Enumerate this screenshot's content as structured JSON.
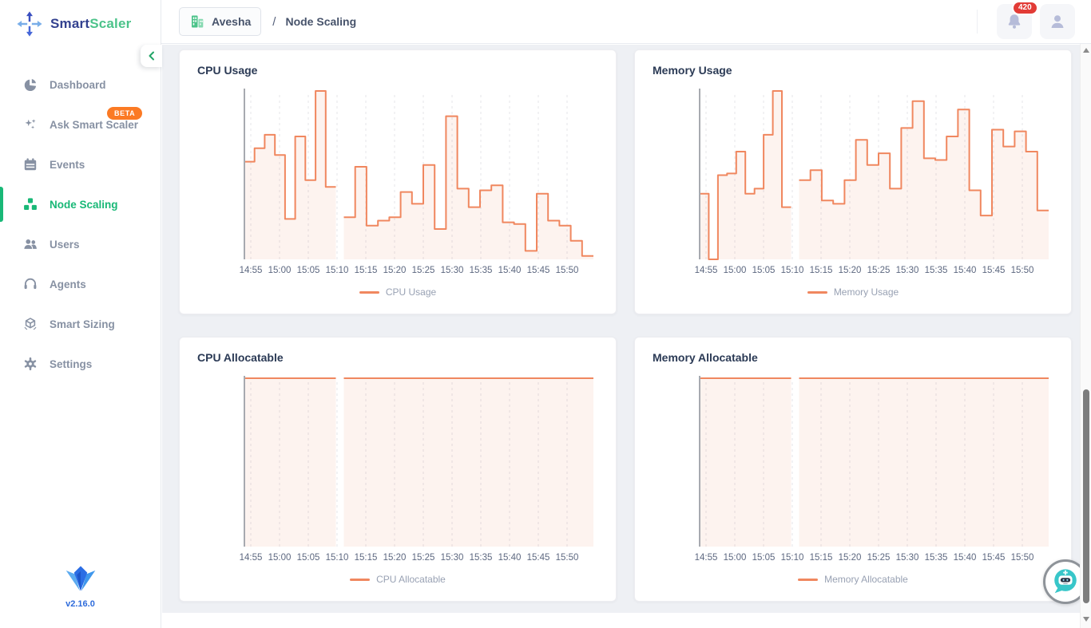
{
  "brand": {
    "name_part1": "Smart",
    "name_part2": "Scaler",
    "version": "v2.16.0",
    "accent_green": "#19b877",
    "accent_blue": "#33418f"
  },
  "header": {
    "org_button": {
      "label": "Avesha",
      "icon": "buildings-icon"
    },
    "separator": "/",
    "page_title": "Node Scaling",
    "notifications": {
      "count": "420",
      "badge_color": "#e23b36"
    }
  },
  "sidebar": {
    "items": [
      {
        "label": "Dashboard",
        "icon": "pie-chart-icon",
        "active": false
      },
      {
        "label": "Ask Smart Scaler",
        "icon": "sparkles-icon",
        "active": false,
        "badge": "BETA",
        "badge_color": "#fb7a24"
      },
      {
        "label": "Events",
        "icon": "calendar-icon",
        "active": false
      },
      {
        "label": "Node Scaling",
        "icon": "nodes-icon",
        "active": true
      },
      {
        "label": "Users",
        "icon": "users-icon",
        "active": false
      },
      {
        "label": "Agents",
        "icon": "headset-icon",
        "active": false
      },
      {
        "label": "Smart Sizing",
        "icon": "cube-icon",
        "active": false
      },
      {
        "label": "Settings",
        "icon": "gear-icon",
        "active": false
      }
    ]
  },
  "icons": {
    "logo": "arrows-expand-icon",
    "collapse": "chevron-left-icon",
    "notification": "bell-icon",
    "profile": "user-icon",
    "chat": "chatbot-icon",
    "footer_logo": "crown-logo-icon"
  },
  "chart_data": [
    {
      "type": "line",
      "step": true,
      "title": "CPU Usage",
      "legend": "CPU Usage",
      "line_color": "#f0875f",
      "fill_color": "rgba(240,135,95,0.10)",
      "grid": "vertical-dashed",
      "legend_position": "bottom",
      "ylim": [
        0,
        100
      ],
      "x_ticks": [
        "14:55",
        "15:00",
        "15:05",
        "15:10",
        "15:15",
        "15:20",
        "15:25",
        "15:30",
        "15:35",
        "15:40",
        "15:45",
        "15:50"
      ],
      "segments": [
        {
          "start": 0,
          "end": 0.262,
          "values": [
            58,
            66,
            74,
            62,
            24,
            73,
            47,
            100,
            43
          ]
        },
        {
          "start": 0.285,
          "end": 1,
          "values": [
            25,
            55,
            20,
            23,
            25,
            40,
            33,
            56,
            18,
            85,
            42,
            31,
            41,
            44,
            22,
            21,
            5,
            39,
            23,
            20,
            11,
            2
          ]
        }
      ]
    },
    {
      "type": "line",
      "step": true,
      "title": "Memory Usage",
      "legend": "Memory Usage",
      "line_color": "#f0875f",
      "fill_color": "rgba(240,135,95,0.10)",
      "grid": "vertical-dashed",
      "legend_position": "bottom",
      "ylim": [
        0,
        100
      ],
      "x_ticks": [
        "14:55",
        "15:00",
        "15:05",
        "15:10",
        "15:15",
        "15:20",
        "15:25",
        "15:30",
        "15:35",
        "15:40",
        "15:45",
        "15:50"
      ],
      "segments": [
        {
          "start": 0,
          "end": 0.262,
          "values": [
            39,
            0,
            50,
            51,
            64,
            39,
            42,
            74,
            100,
            31
          ]
        },
        {
          "start": 0.285,
          "end": 1,
          "values": [
            47,
            53,
            35,
            33,
            47,
            71,
            56,
            63,
            42,
            78,
            94,
            60,
            59,
            73,
            89,
            41,
            26,
            77,
            67,
            76,
            64,
            29
          ]
        }
      ]
    },
    {
      "type": "line",
      "step": true,
      "title": "CPU Allocatable",
      "legend": "CPU Allocatable",
      "line_color": "#f0875f",
      "fill_color": "rgba(240,135,95,0.10)",
      "grid": "vertical-dashed",
      "legend_position": "bottom",
      "ylim": [
        0,
        100
      ],
      "x_ticks": [
        "14:55",
        "15:00",
        "15:05",
        "15:10",
        "15:15",
        "15:20",
        "15:25",
        "15:30",
        "15:35",
        "15:40",
        "15:45",
        "15:50"
      ],
      "segments": [
        {
          "start": 0,
          "end": 0.262,
          "values": [
            100
          ]
        },
        {
          "start": 0.285,
          "end": 1,
          "values": [
            100
          ]
        }
      ]
    },
    {
      "type": "line",
      "step": true,
      "title": "Memory Allocatable",
      "legend": "Memory Allocatable",
      "line_color": "#f0875f",
      "fill_color": "rgba(240,135,95,0.10)",
      "grid": "vertical-dashed",
      "legend_position": "bottom",
      "ylim": [
        0,
        100
      ],
      "x_ticks": [
        "14:55",
        "15:00",
        "15:05",
        "15:10",
        "15:15",
        "15:20",
        "15:25",
        "15:30",
        "15:35",
        "15:40",
        "15:45",
        "15:50"
      ],
      "segments": [
        {
          "start": 0,
          "end": 0.262,
          "values": [
            100
          ]
        },
        {
          "start": 0.285,
          "end": 1,
          "values": [
            100
          ]
        }
      ]
    }
  ]
}
